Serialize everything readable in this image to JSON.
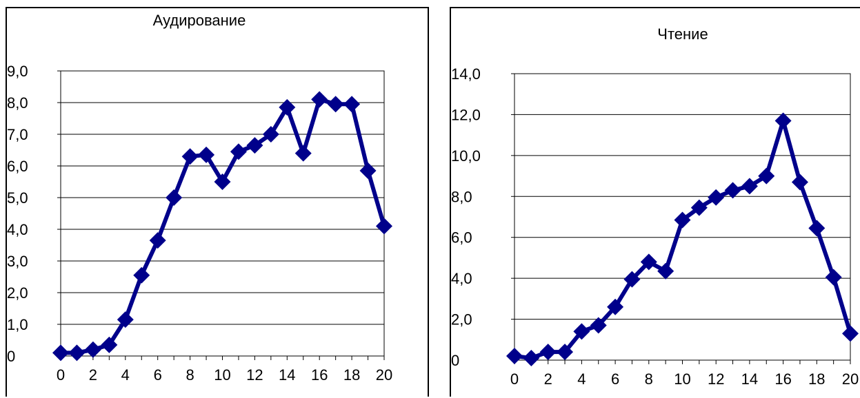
{
  "chart_data": [
    {
      "type": "line",
      "title": "Аудирование",
      "x": [
        0,
        1,
        2,
        3,
        4,
        5,
        6,
        7,
        8,
        9,
        10,
        11,
        12,
        13,
        14,
        15,
        16,
        17,
        18,
        19,
        20
      ],
      "series": [
        {
          "values": [
            0.1,
            0.1,
            0.2,
            0.35,
            1.15,
            2.55,
            3.65,
            5.0,
            6.3,
            6.35,
            5.5,
            6.45,
            6.65,
            7.0,
            7.85,
            6.4,
            8.1,
            7.95,
            7.95,
            5.85,
            4.1
          ]
        }
      ],
      "xlim": [
        0,
        20
      ],
      "xticks": [
        "0",
        "2",
        "4",
        "6",
        "8",
        "10",
        "12",
        "14",
        "16",
        "18",
        "20"
      ],
      "ylim": [
        0,
        9
      ],
      "yticks": [
        "0",
        "1,0",
        "2,0",
        "3,0",
        "4,0",
        "5,0",
        "6,0",
        "7,0",
        "8,0",
        "9,0"
      ],
      "grid": true,
      "color": "#00008b"
    },
    {
      "type": "line",
      "title": "Чтение",
      "x": [
        0,
        1,
        2,
        3,
        4,
        5,
        6,
        7,
        8,
        9,
        10,
        11,
        12,
        13,
        14,
        15,
        16,
        17,
        18,
        19,
        20
      ],
      "series": [
        {
          "values": [
            0.2,
            0.1,
            0.4,
            0.4,
            1.4,
            1.7,
            2.6,
            3.95,
            4.8,
            4.35,
            6.85,
            7.45,
            7.95,
            8.3,
            8.5,
            9.0,
            11.7,
            8.7,
            6.45,
            4.05,
            1.3
          ]
        }
      ],
      "xlim": [
        0,
        20
      ],
      "xticks": [
        "0",
        "2",
        "4",
        "6",
        "8",
        "10",
        "12",
        "14",
        "16",
        "18",
        "20"
      ],
      "ylim": [
        0,
        14
      ],
      "yticks": [
        "0",
        "2,0",
        "4,0",
        "6,0",
        "8,0",
        "10,0",
        "12,0",
        "14,0"
      ],
      "grid": true,
      "color": "#00008b"
    }
  ]
}
